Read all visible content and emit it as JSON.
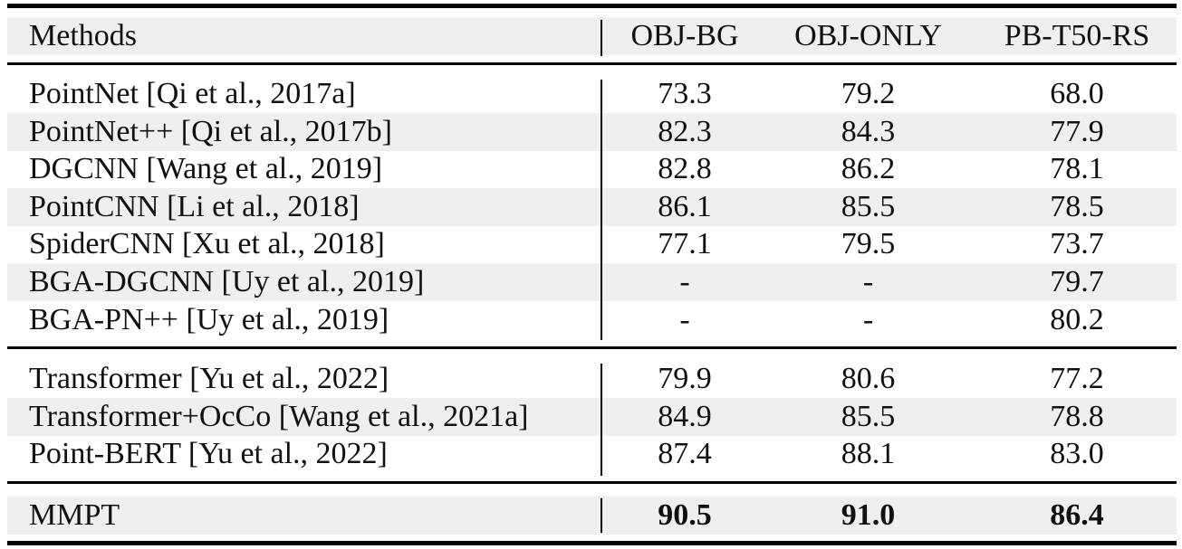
{
  "columns": {
    "methods": "Methods",
    "col1": "OBJ-BG",
    "col2": "OBJ-ONLY",
    "col3": "PB-T50-RS"
  },
  "group1": [
    {
      "method": "PointNet [Qi et al., 2017a]",
      "v1": "73.3",
      "v2": "79.2",
      "v3": "68.0"
    },
    {
      "method": "PointNet++ [Qi et al., 2017b]",
      "v1": "82.3",
      "v2": "84.3",
      "v3": "77.9"
    },
    {
      "method": "DGCNN [Wang et al., 2019]",
      "v1": "82.8",
      "v2": "86.2",
      "v3": "78.1"
    },
    {
      "method": "PointCNN [Li et al., 2018]",
      "v1": "86.1",
      "v2": "85.5",
      "v3": "78.5"
    },
    {
      "method": "SpiderCNN [Xu et al., 2018]",
      "v1": "77.1",
      "v2": "79.5",
      "v3": "73.7"
    },
    {
      "method": "BGA-DGCNN [Uy et al., 2019]",
      "v1": "-",
      "v2": "-",
      "v3": "79.7"
    },
    {
      "method": "BGA-PN++ [Uy et al., 2019]",
      "v1": "-",
      "v2": "-",
      "v3": "80.2"
    }
  ],
  "group2": [
    {
      "method": "Transformer [Yu et al., 2022]",
      "v1": "79.9",
      "v2": "80.6",
      "v3": "77.2"
    },
    {
      "method": "Transformer+OcCo [Wang et al., 2021a]",
      "v1": "84.9",
      "v2": "85.5",
      "v3": "78.8"
    },
    {
      "method": "Point-BERT [Yu et al., 2022]",
      "v1": "87.4",
      "v2": "88.1",
      "v3": "83.0"
    }
  ],
  "ours": {
    "method": "MMPT",
    "v1": "90.5",
    "v2": "91.0",
    "v3": "86.4"
  }
}
